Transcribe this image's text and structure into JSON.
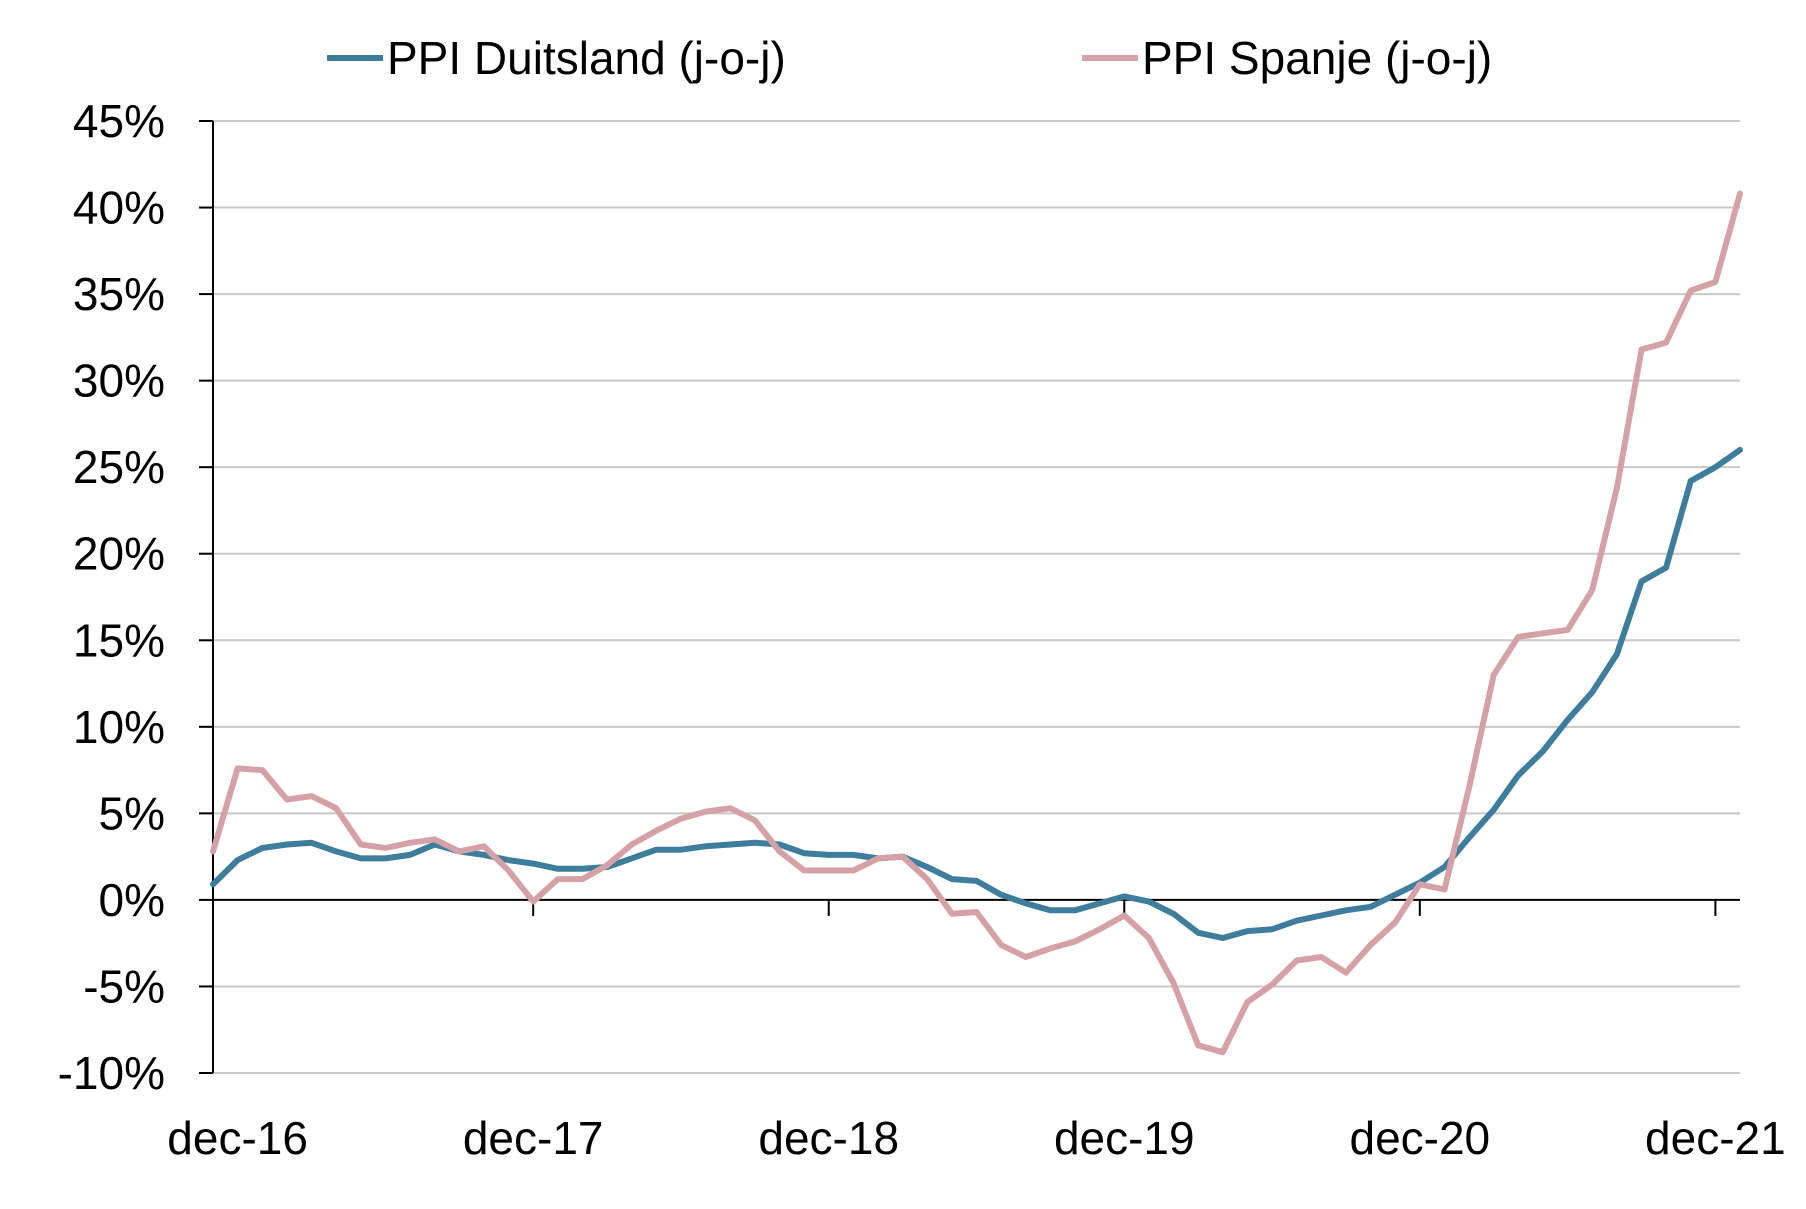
{
  "chart_data": {
    "type": "line",
    "x": [
      "nov-16",
      "dec-16",
      "jan-17",
      "feb-17",
      "mrt-17",
      "apr-17",
      "mei-17",
      "jun-17",
      "jul-17",
      "aug-17",
      "sep-17",
      "okt-17",
      "nov-17",
      "dec-17",
      "jan-18",
      "feb-18",
      "mrt-18",
      "apr-18",
      "mei-18",
      "jun-18",
      "jul-18",
      "aug-18",
      "sep-18",
      "okt-18",
      "nov-18",
      "dec-18",
      "jan-19",
      "feb-19",
      "mrt-19",
      "apr-19",
      "mei-19",
      "jun-19",
      "jul-19",
      "aug-19",
      "sep-19",
      "okt-19",
      "nov-19",
      "dec-19",
      "jan-20",
      "feb-20",
      "mrt-20",
      "apr-20",
      "mei-20",
      "jun-20",
      "jul-20",
      "aug-20",
      "sep-20",
      "okt-20",
      "nov-20",
      "dec-20",
      "jan-21",
      "feb-21",
      "mrt-21",
      "apr-21",
      "mei-21",
      "jun-21",
      "jul-21",
      "aug-21",
      "sep-21",
      "okt-21",
      "nov-21",
      "dec-21",
      "jan-22"
    ],
    "x_tick_labels": [
      "dec-16",
      "dec-17",
      "dec-18",
      "dec-19",
      "dec-20",
      "dec-21"
    ],
    "y_tick_labels": [
      "45%",
      "40%",
      "35%",
      "30%",
      "25%",
      "20%",
      "15%",
      "10%",
      "5%",
      "0%",
      "-5%",
      "-10%"
    ],
    "ylim": [
      -10,
      45
    ],
    "yunit": "%",
    "grid": true,
    "legend_position": "top",
    "series": [
      {
        "name": "PPI Duitsland (j-o-j)",
        "color": "#3F7D9C",
        "values": [
          0.9,
          2.3,
          3.0,
          3.2,
          3.3,
          2.8,
          2.4,
          2.4,
          2.6,
          3.2,
          2.8,
          2.6,
          2.3,
          2.1,
          1.8,
          1.8,
          1.9,
          2.4,
          2.9,
          2.9,
          3.1,
          3.2,
          3.3,
          3.2,
          2.7,
          2.6,
          2.6,
          2.4,
          2.5,
          1.9,
          1.2,
          1.1,
          0.3,
          -0.2,
          -0.6,
          -0.6,
          -0.2,
          0.2,
          -0.1,
          -0.8,
          -1.9,
          -2.2,
          -1.8,
          -1.7,
          -1.2,
          -0.9,
          -0.6,
          -0.4,
          0.3,
          1.0,
          1.9,
          3.6,
          5.2,
          7.2,
          8.6,
          10.4,
          12.0,
          14.2,
          18.4,
          19.2,
          24.2,
          25.0,
          26.0
        ]
      },
      {
        "name": "PPI Spanje (j-o-j)",
        "color": "#D4A1A6",
        "values": [
          2.8,
          7.6,
          7.5,
          5.8,
          6.0,
          5.3,
          3.2,
          3.0,
          3.3,
          3.5,
          2.8,
          3.1,
          1.7,
          -0.1,
          1.2,
          1.2,
          2.0,
          3.2,
          4.0,
          4.7,
          5.1,
          5.3,
          4.6,
          2.8,
          1.7,
          1.7,
          1.7,
          2.4,
          2.5,
          1.2,
          -0.8,
          -0.7,
          -2.6,
          -3.3,
          -2.8,
          -2.4,
          -1.7,
          -0.9,
          -2.2,
          -4.8,
          -8.4,
          -8.8,
          -5.9,
          -4.9,
          -3.5,
          -3.3,
          -4.2,
          -2.6,
          -1.3,
          0.9,
          0.6,
          6.5,
          13.0,
          15.2,
          15.4,
          15.6,
          17.9,
          23.8,
          31.8,
          32.2,
          35.2,
          35.7,
          40.8
        ]
      }
    ]
  }
}
